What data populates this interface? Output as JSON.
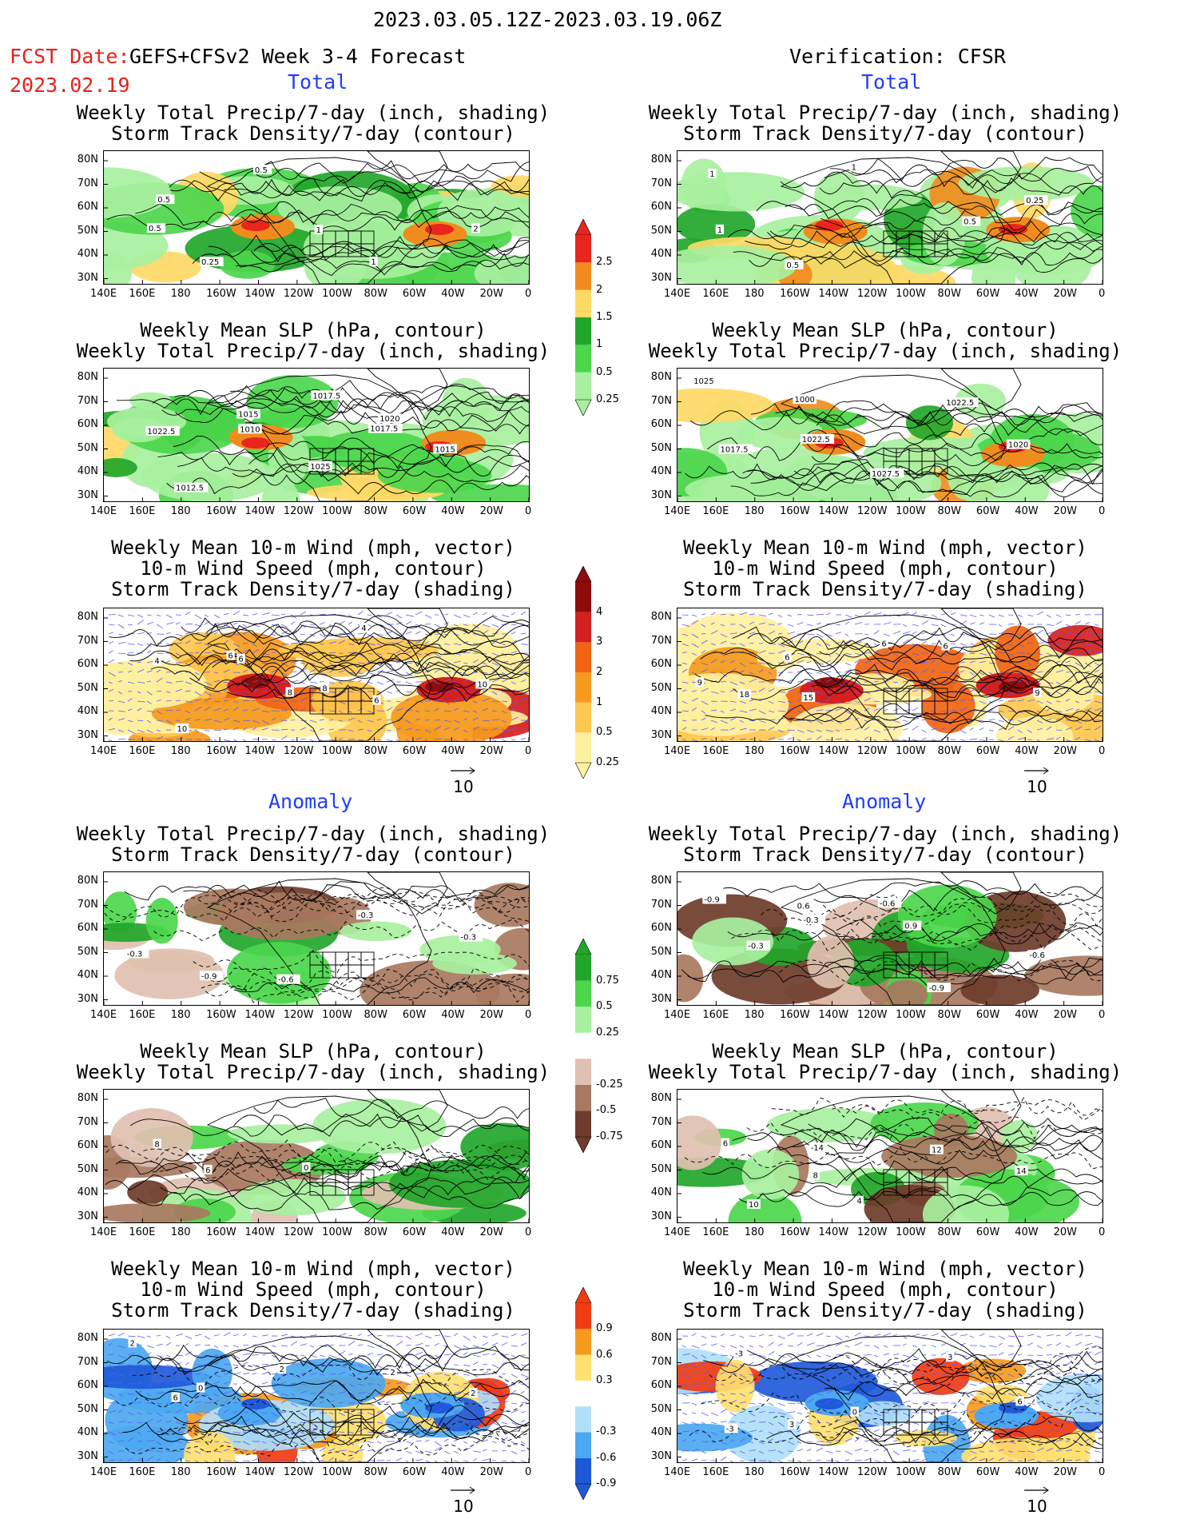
{
  "header": {
    "date_range": "2023.03.05.12Z-2023.03.19.06Z",
    "fcst_label": "FCST Date:",
    "model": "GEFS+CFSv2 Week 3-4 Forecast",
    "fcst_date": "2023.02.19",
    "verification": "Verification: CFSR"
  },
  "sections": {
    "total": "Total",
    "anomaly": "Anomaly"
  },
  "panel_titles": {
    "precip_storm": "Weekly Total Precip/7-day (inch, shading)\nStorm Track Density/7-day (contour)",
    "slp_precip": "Weekly Mean SLP (hPa, contour)\nWeekly Total Precip/7-day (inch, shading)",
    "wind_storm": "Weekly Mean 10-m Wind (mph, vector)\n10-m Wind Speed (mph, contour)\nStorm Track Density/7-day (shading)"
  },
  "axes": {
    "lat_ticks": [
      "80N",
      "70N",
      "60N",
      "50N",
      "40N",
      "30N"
    ],
    "lon_ticks": [
      "140E",
      "160E",
      "180",
      "160W",
      "140W",
      "120W",
      "100W",
      "80W",
      "60W",
      "40W",
      "20W",
      "0"
    ]
  },
  "vector_ref": "10",
  "colorbars": {
    "precip_total": {
      "labels": [
        "2.5",
        "2",
        "1.5",
        "1",
        "0.5",
        "0.25"
      ],
      "colors": [
        "#e8261c",
        "#f08c1e",
        "#ffd966",
        "#22a62a",
        "#4cd64c",
        "#a8f0a0"
      ]
    },
    "storm_total": {
      "labels": [
        "4",
        "3",
        "2",
        "1",
        "0.5",
        "0.25"
      ],
      "colors": [
        "#8c0c0c",
        "#d42020",
        "#f06414",
        "#f59a1e",
        "#ffc850",
        "#fff0a0"
      ]
    },
    "precip_anom": {
      "labels": [
        "0.75",
        "0.5",
        "0.25",
        "-0.25",
        "-0.5",
        "-0.75"
      ],
      "colors": [
        "#22a62a",
        "#4cd64c",
        "#a8f0a0",
        "#ffffff",
        "#e0c0b0",
        "#a87860",
        "#6e3c2a"
      ]
    },
    "storm_anom": {
      "labels": [
        "0.9",
        "0.6",
        "0.3",
        "-0.3",
        "-0.6",
        "-0.9"
      ],
      "colors": [
        "#f03c14",
        "#f59a1e",
        "#ffe070",
        "#ffffff",
        "#b0e0f8",
        "#4ca8f0",
        "#1e5ad8"
      ]
    }
  },
  "contour_labels": {
    "fc_total_precip": [
      "0.5",
      "0.25",
      "1",
      "1",
      "2",
      "0.5",
      "0.5"
    ],
    "ob_total_precip": [
      "1",
      "0.5",
      "1",
      "0.5",
      "0.25",
      "1"
    ],
    "fc_total_slp": [
      "1022.5",
      "1015",
      "1025",
      "1020",
      "1015",
      "1012.5",
      "1010",
      "1017.5",
      "1017.5"
    ],
    "ob_total_slp": [
      "1025",
      "1022.5",
      "1027.5",
      "1022.5",
      "1020",
      "1017.5",
      "1000"
    ],
    "fc_total_wind": [
      "4",
      "6",
      "8",
      "4",
      "10",
      "10",
      "6",
      "8",
      "6"
    ],
    "ob_total_wind": [
      "9",
      "15",
      "6",
      "6",
      "9",
      "18",
      "6"
    ],
    "fc_anom_precip": [
      "-0.3",
      "-0.9",
      "-0.6",
      "-0.3",
      "-0.3"
    ],
    "ob_anom_precip": [
      "-0.9",
      "-0.3",
      "-0.6",
      "-0.9",
      "-0.6",
      "-0.3",
      "0.6",
      "0.9"
    ],
    "fc_anom_slp": [
      "8",
      "6",
      "0"
    ],
    "ob_anom_slp": [
      "6",
      "8",
      "4",
      "12",
      "14",
      "10",
      "-14"
    ],
    "fc_anom_wind": [
      "2",
      "0",
      "2",
      "2",
      "2",
      "6"
    ],
    "ob_anom_wind": [
      "-3",
      "3",
      "0",
      "3",
      "6",
      "-3"
    ]
  }
}
